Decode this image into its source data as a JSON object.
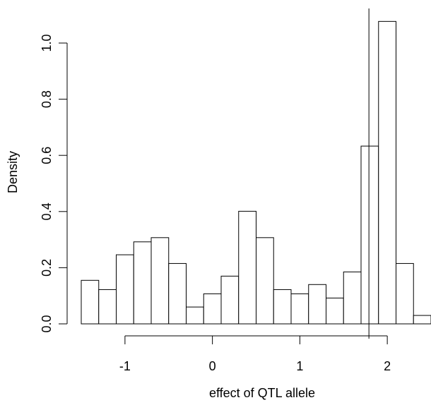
{
  "chart_data": {
    "type": "bar",
    "title": "",
    "xlabel": "effect of QTL allele",
    "ylabel": "Density",
    "bin_edges": [
      -1.5,
      -1.3,
      -1.1,
      -0.9,
      -0.7,
      -0.5,
      -0.3,
      -0.1,
      0.1,
      0.3,
      0.5,
      0.7,
      0.9,
      1.1,
      1.3,
      1.5,
      1.7,
      1.9,
      2.1,
      2.3,
      2.5
    ],
    "values": [
      0.155,
      0.122,
      0.246,
      0.292,
      0.307,
      0.215,
      0.06,
      0.107,
      0.17,
      0.401,
      0.307,
      0.122,
      0.107,
      0.14,
      0.092,
      0.185,
      0.633,
      1.077,
      0.215,
      0.03
    ],
    "xticks": [
      -1,
      0,
      1,
      2
    ],
    "xtick_labels": [
      "-1",
      "0",
      "1",
      "2"
    ],
    "yticks": [
      0.0,
      0.2,
      0.4,
      0.6,
      0.8,
      1.0
    ],
    "ytick_labels": [
      "0.0",
      "0.2",
      "0.4",
      "0.6",
      "0.8",
      "1.0"
    ],
    "xlim": [
      -1.5,
      2.5
    ],
    "ylim": [
      0,
      1.1
    ],
    "vline_x": 1.79,
    "grid": false,
    "colors": {
      "bar_fill": "#ffffff",
      "bar_stroke": "#000000",
      "axis": "#000000"
    }
  }
}
